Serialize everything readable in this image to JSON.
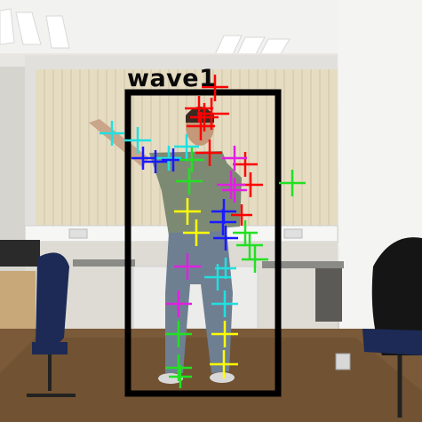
{
  "scene": {
    "description_free": true,
    "detection": {
      "label": "wave1",
      "box_color": "#000000"
    },
    "marker_colors": {
      "red": "#ff0000",
      "magenta": "#e020e0",
      "cyan": "#20e0e0",
      "blue": "#1a1aff",
      "green": "#22e022",
      "yellow": "#ffff00"
    },
    "marker_icon": "plus-cross-icon"
  }
}
